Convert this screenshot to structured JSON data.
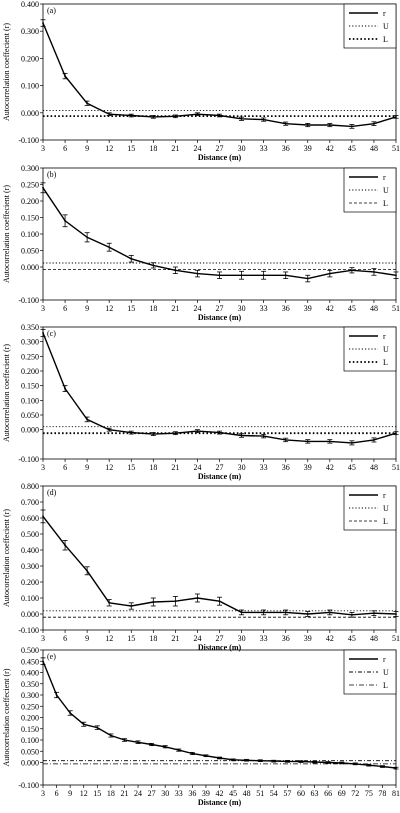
{
  "chart_data": [
    {
      "type": "line",
      "panel_label": "(a)",
      "xlabel": "Distance (m)",
      "ylabel": "Autocorrelation coeffecient (r)",
      "x_ticks": [
        3,
        6,
        9,
        12,
        15,
        18,
        21,
        24,
        27,
        30,
        33,
        36,
        39,
        42,
        45,
        48,
        51
      ],
      "y_ticks": [
        "-0.100",
        "0.000",
        "0.100",
        "0.200",
        "0.300",
        "0.400"
      ],
      "xlim": [
        3,
        51
      ],
      "ylim": [
        -0.1,
        0.4
      ],
      "legend_position": "top-right",
      "series": [
        {
          "name": "r",
          "style": "solid",
          "x": [
            3,
            6,
            9,
            12,
            15,
            18,
            21,
            24,
            27,
            30,
            33,
            36,
            39,
            42,
            45,
            48,
            51
          ],
          "values": [
            0.33,
            0.135,
            0.035,
            -0.005,
            -0.01,
            -0.015,
            -0.013,
            -0.005,
            -0.01,
            -0.022,
            -0.025,
            -0.04,
            -0.045,
            -0.045,
            -0.05,
            -0.04,
            -0.015
          ],
          "error": [
            0.012,
            0.01,
            0.008,
            0.005,
            0.005,
            0.005,
            0.005,
            0.005,
            0.005,
            0.006,
            0.006,
            0.006,
            0.006,
            0.006,
            0.007,
            0.007,
            0.005
          ]
        },
        {
          "name": "U",
          "style": "dotted",
          "x": [
            3,
            51
          ],
          "values": [
            0.008,
            0.008
          ]
        },
        {
          "name": "L",
          "style": "bold-dotted",
          "x": [
            3,
            51
          ],
          "values": [
            -0.012,
            -0.012
          ]
        }
      ]
    },
    {
      "type": "line",
      "panel_label": "(b)",
      "xlabel": "Distance (m)",
      "ylabel": "Autocorrelation coeffecient (r)",
      "x_ticks": [
        3,
        6,
        9,
        12,
        15,
        18,
        21,
        24,
        27,
        30,
        33,
        36,
        39,
        42,
        45,
        48,
        51
      ],
      "y_ticks": [
        "-0.100",
        "0.000",
        "0.050",
        "0.100",
        "0.150",
        "0.200",
        "0.250",
        "0.300"
      ],
      "xlim": [
        3,
        51
      ],
      "ylim": [
        -0.1,
        0.3
      ],
      "legend_position": "top-right",
      "series": [
        {
          "name": "r",
          "style": "solid",
          "x": [
            3,
            6,
            9,
            12,
            15,
            18,
            21,
            24,
            27,
            30,
            33,
            36,
            39,
            42,
            45,
            48,
            51
          ],
          "values": [
            0.24,
            0.14,
            0.09,
            0.06,
            0.025,
            0.005,
            -0.01,
            -0.02,
            -0.025,
            -0.025,
            -0.025,
            -0.025,
            -0.035,
            -0.02,
            -0.01,
            -0.015,
            -0.025
          ],
          "error": [
            0.015,
            0.018,
            0.014,
            0.012,
            0.01,
            0.008,
            0.01,
            0.01,
            0.01,
            0.012,
            0.012,
            0.01,
            0.01,
            0.01,
            0.008,
            0.01,
            0.01
          ]
        },
        {
          "name": "U",
          "style": "dotted",
          "x": [
            3,
            51
          ],
          "values": [
            0.012,
            0.012
          ]
        },
        {
          "name": "L",
          "style": "dashed",
          "x": [
            3,
            51
          ],
          "values": [
            -0.008,
            -0.008
          ]
        }
      ]
    },
    {
      "type": "line",
      "panel_label": "(c)",
      "xlabel": "Distance (m)",
      "ylabel": "Autocorrelation coeffecient (r)",
      "x_ticks": [
        3,
        6,
        9,
        12,
        15,
        18,
        21,
        24,
        27,
        30,
        33,
        36,
        39,
        42,
        45,
        48,
        51
      ],
      "y_ticks": [
        "-0.100",
        "0.000",
        "0.050",
        "0.100",
        "0.150",
        "0.200",
        "0.250",
        "0.300",
        "0.350"
      ],
      "xlim": [
        3,
        51
      ],
      "ylim": [
        -0.1,
        0.35
      ],
      "legend_position": "top-right",
      "series": [
        {
          "name": "r",
          "style": "solid",
          "x": [
            3,
            6,
            9,
            12,
            15,
            18,
            21,
            24,
            27,
            30,
            33,
            36,
            39,
            42,
            45,
            48,
            51
          ],
          "values": [
            0.33,
            0.14,
            0.035,
            0.0,
            -0.01,
            -0.015,
            -0.012,
            -0.005,
            -0.01,
            -0.02,
            -0.022,
            -0.035,
            -0.04,
            -0.04,
            -0.045,
            -0.035,
            -0.012
          ],
          "error": [
            0.012,
            0.01,
            0.008,
            0.005,
            0.005,
            0.005,
            0.005,
            0.005,
            0.005,
            0.006,
            0.006,
            0.006,
            0.006,
            0.006,
            0.007,
            0.007,
            0.005
          ]
        },
        {
          "name": "U",
          "style": "dotted",
          "x": [
            3,
            51
          ],
          "values": [
            0.01,
            0.01
          ]
        },
        {
          "name": "L",
          "style": "bold-dotted",
          "x": [
            3,
            51
          ],
          "values": [
            -0.012,
            -0.012
          ]
        }
      ]
    },
    {
      "type": "line",
      "panel_label": "(d)",
      "xlabel": "Distance (m)",
      "ylabel": "Autocorrelation coeffecient (r)",
      "x_ticks": [
        3,
        6,
        9,
        12,
        15,
        18,
        21,
        24,
        27,
        30,
        33,
        36,
        39,
        42,
        45,
        48,
        51
      ],
      "y_ticks": [
        "-0.100",
        "0.000",
        "0.100",
        "0.200",
        "0.300",
        "0.400",
        "0.500",
        "0.600",
        "0.700",
        "0.800"
      ],
      "xlim": [
        3,
        51
      ],
      "ylim": [
        -0.1,
        0.8
      ],
      "legend_position": "top-right",
      "series": [
        {
          "name": "r",
          "style": "solid",
          "x": [
            3,
            6,
            9,
            12,
            15,
            18,
            21,
            24,
            27,
            30,
            33,
            36,
            39,
            42,
            45,
            48,
            51
          ],
          "values": [
            0.61,
            0.43,
            0.27,
            0.07,
            0.05,
            0.075,
            0.08,
            0.1,
            0.08,
            0.01,
            0.01,
            0.01,
            0.0,
            0.01,
            -0.005,
            0.005,
            0.0
          ],
          "error": [
            0.04,
            0.03,
            0.025,
            0.02,
            0.02,
            0.025,
            0.03,
            0.025,
            0.025,
            0.015,
            0.015,
            0.015,
            0.015,
            0.015,
            0.015,
            0.015,
            0.015
          ]
        },
        {
          "name": "U",
          "style": "dotted",
          "x": [
            3,
            51
          ],
          "values": [
            0.02,
            0.02
          ]
        },
        {
          "name": "L",
          "style": "dashed",
          "x": [
            3,
            51
          ],
          "values": [
            -0.02,
            -0.02
          ]
        }
      ]
    },
    {
      "type": "line",
      "panel_label": "(e)",
      "xlabel": "Distance (m)",
      "ylabel": "Autocorrelation coeffecient (r)",
      "x_ticks": [
        3,
        6,
        9,
        12,
        15,
        18,
        21,
        24,
        27,
        30,
        33,
        36,
        39,
        42,
        45,
        48,
        51,
        54,
        57,
        60,
        63,
        66,
        69,
        72,
        75,
        78,
        81
      ],
      "y_ticks": [
        "-0.100",
        "0.000",
        "0.050",
        "0.100",
        "0.150",
        "0.200",
        "0.250",
        "0.300",
        "0.350",
        "0.400",
        "0.450",
        "0.500"
      ],
      "xlim": [
        3,
        81
      ],
      "ylim": [
        -0.1,
        0.5
      ],
      "legend_position": "top-right",
      "series": [
        {
          "name": "r",
          "style": "solid",
          "x": [
            3,
            6,
            9,
            12,
            15,
            18,
            21,
            24,
            27,
            30,
            33,
            36,
            39,
            42,
            45,
            48,
            51,
            54,
            57,
            60,
            63,
            66,
            69,
            72,
            75,
            78,
            81
          ],
          "values": [
            0.45,
            0.3,
            0.22,
            0.17,
            0.155,
            0.12,
            0.1,
            0.09,
            0.08,
            0.07,
            0.055,
            0.04,
            0.03,
            0.02,
            0.012,
            0.01,
            0.008,
            0.006,
            0.005,
            0.004,
            0.002,
            0.0,
            -0.002,
            -0.006,
            -0.012,
            -0.018,
            -0.025
          ],
          "error": [
            0.015,
            0.012,
            0.01,
            0.009,
            0.008,
            0.007,
            0.006,
            0.006,
            0.005,
            0.005,
            0.005,
            0.005,
            0.004,
            0.004,
            0.004,
            0.004,
            0.004,
            0.004,
            0.004,
            0.004,
            0.004,
            0.004,
            0.004,
            0.004,
            0.004,
            0.004,
            0.004
          ]
        },
        {
          "name": "U",
          "style": "dash-dot",
          "x": [
            3,
            81
          ],
          "values": [
            0.008,
            0.008
          ]
        },
        {
          "name": "L",
          "style": "dash-dot-thin",
          "x": [
            3,
            81
          ],
          "values": [
            -0.006,
            -0.006
          ]
        }
      ]
    }
  ]
}
